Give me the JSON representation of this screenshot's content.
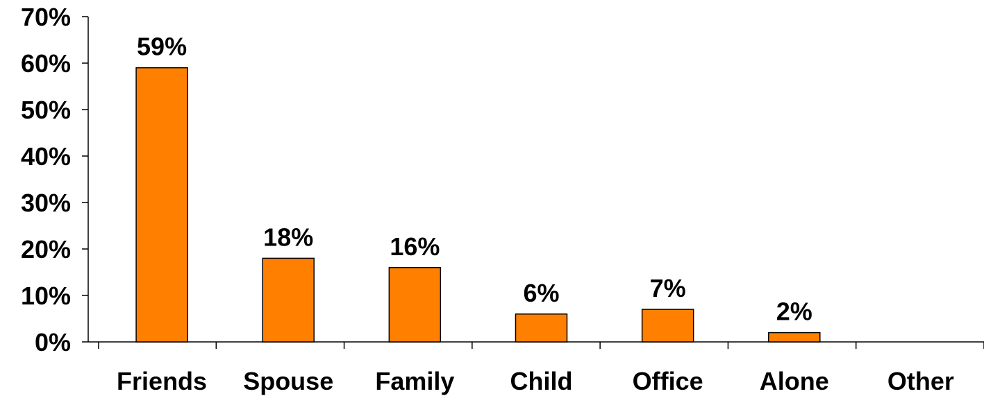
{
  "chart_data": {
    "type": "bar",
    "categories": [
      "Friends",
      "Spouse",
      "Family",
      "Child",
      "Office",
      "Alone",
      "Other"
    ],
    "values": [
      59,
      18,
      16,
      6,
      7,
      2,
      null
    ],
    "data_labels": [
      "59%",
      "18%",
      "16%",
      "6%",
      "7%",
      "2%",
      ""
    ],
    "title": "",
    "xlabel": "",
    "ylabel": "",
    "ylim": [
      0,
      70
    ],
    "yticks": [
      0,
      10,
      20,
      30,
      40,
      50,
      60,
      70
    ],
    "ytick_labels": [
      "0%",
      "10%",
      "20%",
      "30%",
      "40%",
      "50%",
      "60%",
      "70%"
    ],
    "bar_color": "#ff8000",
    "grid": false,
    "legend": "none"
  }
}
